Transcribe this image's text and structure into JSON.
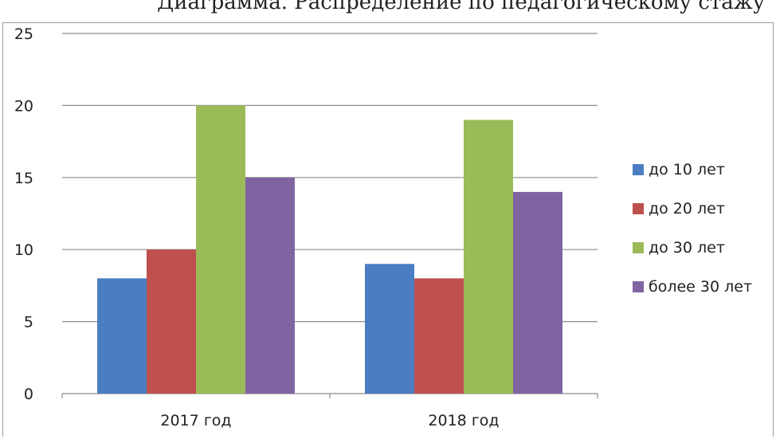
{
  "chart_data": {
    "type": "bar",
    "title": "Диаграмма. Распределение по педагогическому стажу",
    "categories": [
      "2017 год",
      "2018 год"
    ],
    "series": [
      {
        "name": "до 10 лет",
        "values": [
          8,
          9
        ],
        "color": "#4a7dc1"
      },
      {
        "name": "до 20 лет",
        "values": [
          10,
          8
        ],
        "color": "#c0504d"
      },
      {
        "name": "до 30 лет",
        "values": [
          20,
          19
        ],
        "color": "#9bbb59"
      },
      {
        "name": "более 30 лет",
        "values": [
          15,
          14
        ],
        "color": "#8064a2"
      }
    ],
    "ylim": [
      0,
      25
    ],
    "yticks": [
      "0",
      "5",
      "10",
      "15",
      "20",
      "25"
    ],
    "grid": true,
    "legend_position": "right"
  }
}
